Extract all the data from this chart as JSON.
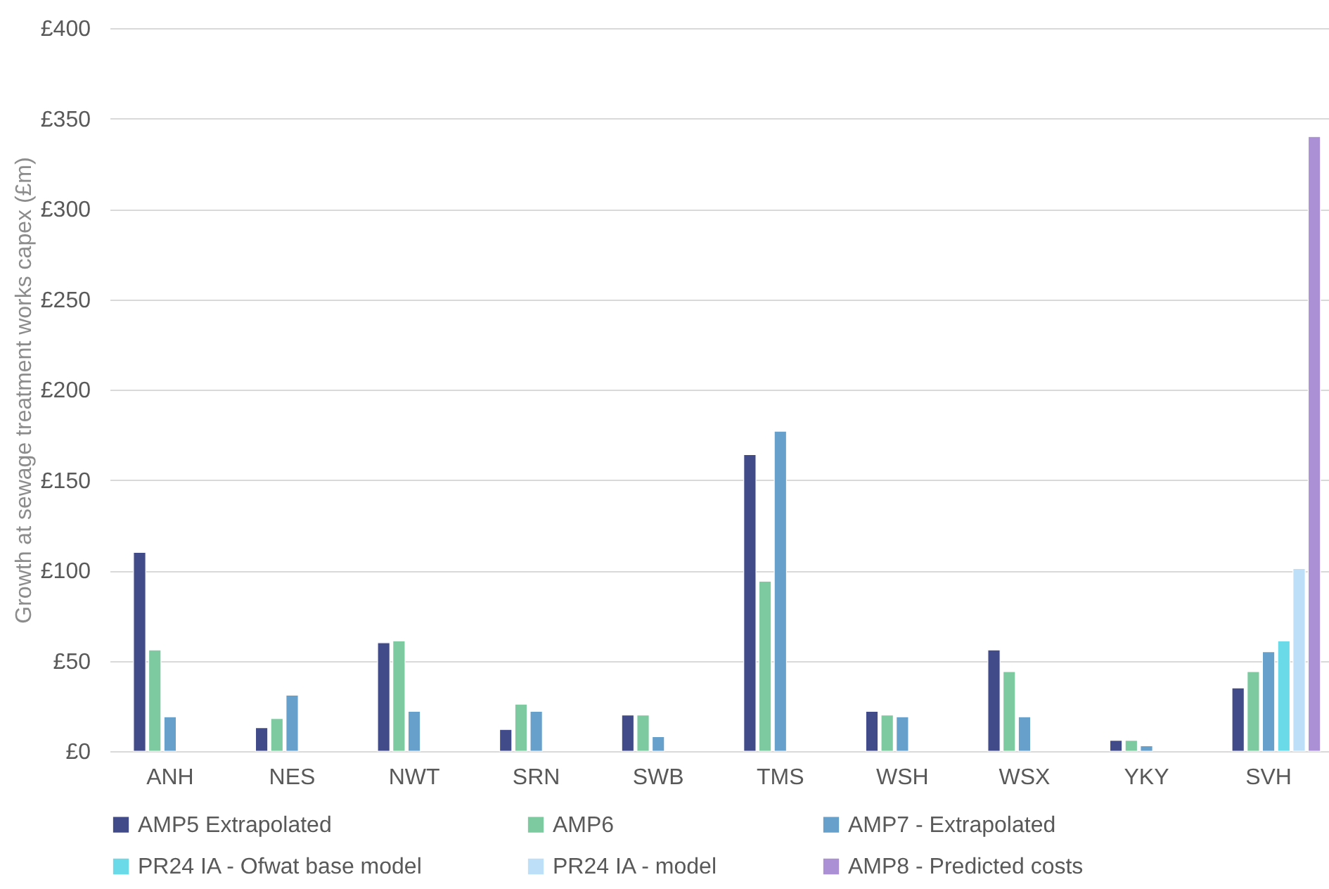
{
  "chart_data": {
    "type": "bar",
    "ylabel": "Growth at sewage treatment works capex (£m)",
    "categories": [
      "ANH",
      "NES",
      "NWT",
      "SRN",
      "SWB",
      "TMS",
      "WSH",
      "WSX",
      "YKY",
      "SVH"
    ],
    "series": [
      {
        "name": "AMP5 Extrapolated",
        "color": "#414b8a",
        "values": [
          110,
          13,
          60,
          12,
          20,
          164,
          22,
          56,
          6,
          35
        ]
      },
      {
        "name": "AMP6",
        "color": "#7dc9a0",
        "values": [
          56,
          18,
          61,
          26,
          20,
          94,
          20,
          44,
          6,
          44
        ]
      },
      {
        "name": "AMP7 - Extrapolated",
        "color": "#68a0cc",
        "values": [
          19,
          31,
          22,
          22,
          8,
          177,
          19,
          19,
          3,
          55
        ]
      },
      {
        "name": "PR24 IA - Ofwat base model",
        "color": "#6ad9e8",
        "values": [
          null,
          null,
          null,
          null,
          null,
          null,
          null,
          null,
          null,
          61
        ]
      },
      {
        "name": "PR24 IA - model",
        "color": "#bde0f8",
        "values": [
          null,
          null,
          null,
          null,
          null,
          null,
          null,
          null,
          null,
          101
        ]
      },
      {
        "name": "AMP8 - Predicted costs",
        "color": "#ab90d6",
        "values": [
          null,
          null,
          null,
          null,
          null,
          null,
          null,
          null,
          null,
          340
        ]
      }
    ],
    "ylim": [
      0,
      400
    ],
    "yticks": [
      {
        "value": 0,
        "label": "£0"
      },
      {
        "value": 50,
        "label": "£50"
      },
      {
        "value": 100,
        "label": "£100"
      },
      {
        "value": 150,
        "label": "£150"
      },
      {
        "value": 200,
        "label": "£200"
      },
      {
        "value": 250,
        "label": "£250"
      },
      {
        "value": 300,
        "label": "£300"
      },
      {
        "value": 350,
        "label": "£350"
      },
      {
        "value": 400,
        "label": "£400"
      }
    ],
    "grid": "y",
    "legend": "bottom"
  }
}
